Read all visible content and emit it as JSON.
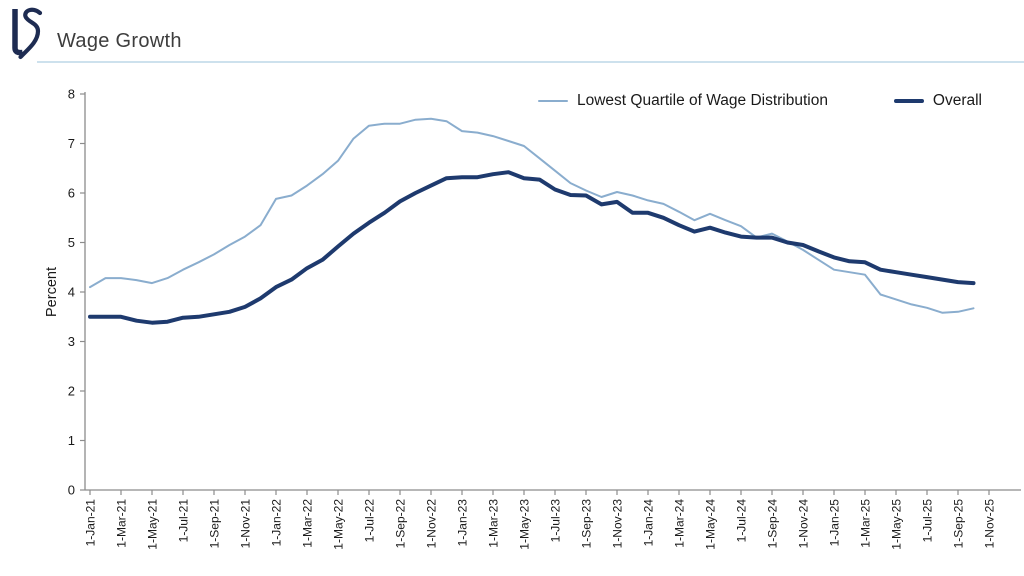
{
  "header": {
    "title": "Wage Growth",
    "logo_text": "LS"
  },
  "colors": {
    "background": "#ffffff",
    "axis": "#8c8c8c",
    "tick_text": "#1a1a1a",
    "title_text": "#3d3d3d",
    "divider": "#cde1ed",
    "logo": "#1e2c52",
    "lowest_quartile_line": "#8aadce",
    "overall_line": "#1e3a6e"
  },
  "chart_data": {
    "type": "line",
    "title": "Wage Growth",
    "xlabel": "",
    "ylabel": "Percent",
    "ylim": [
      0,
      8
    ],
    "ytick_step": 1,
    "grid": false,
    "legend_position": "top-right",
    "x_tick_labels": [
      "1-Jan-21",
      "1-Mar-21",
      "1-May-21",
      "1-Jul-21",
      "1-Sep-21",
      "1-Nov-21",
      "1-Jan-22",
      "1-Mar-22",
      "1-May-22",
      "1-Jul-22",
      "1-Sep-22",
      "1-Nov-22",
      "1-Jan-23",
      "1-Mar-23",
      "1-May-23",
      "1-Jul-23",
      "1-Sep-23",
      "1-Nov-23",
      "1-Jan-24",
      "1-Mar-24",
      "1-May-24",
      "1-Jul-24",
      "1-Sep-24",
      "1-Nov-24",
      "1-Jan-25",
      "1-Mar-25",
      "1-May-25",
      "1-Jul-25",
      "1-Sep-25",
      "1-Nov-25"
    ],
    "x": [
      "Jan-21",
      "Feb-21",
      "Mar-21",
      "Apr-21",
      "May-21",
      "Jun-21",
      "Jul-21",
      "Aug-21",
      "Sep-21",
      "Oct-21",
      "Nov-21",
      "Dec-21",
      "Jan-22",
      "Feb-22",
      "Mar-22",
      "Apr-22",
      "May-22",
      "Jun-22",
      "Jul-22",
      "Aug-22",
      "Sep-22",
      "Oct-22",
      "Nov-22",
      "Dec-22",
      "Jan-23",
      "Feb-23",
      "Mar-23",
      "Apr-23",
      "May-23",
      "Jun-23",
      "Jul-23",
      "Aug-23",
      "Sep-23",
      "Oct-23",
      "Nov-23",
      "Dec-23",
      "Jan-24",
      "Feb-24",
      "Mar-24",
      "Apr-24",
      "May-24",
      "Jun-24",
      "Jul-24",
      "Aug-24",
      "Sep-24",
      "Oct-24",
      "Nov-24",
      "Dec-24",
      "Jan-25",
      "Feb-25",
      "Mar-25",
      "Apr-25",
      "May-25",
      "Jun-25",
      "Jul-25",
      "Aug-25",
      "Sep-25",
      "Oct-25"
    ],
    "series": [
      {
        "name": "Lowest Quartile of Wage Distribution",
        "color": "#8aadce",
        "width": 2,
        "values": [
          4.1,
          4.28,
          4.28,
          4.24,
          4.18,
          4.28,
          4.45,
          4.6,
          4.76,
          4.95,
          5.12,
          5.35,
          5.88,
          5.95,
          6.15,
          6.38,
          6.65,
          7.1,
          7.36,
          7.4,
          7.4,
          7.48,
          7.5,
          7.45,
          7.25,
          7.22,
          7.15,
          7.05,
          6.95,
          6.7,
          6.45,
          6.2,
          6.05,
          5.92,
          6.02,
          5.95,
          5.85,
          5.78,
          5.62,
          5.45,
          5.58,
          5.45,
          5.33,
          5.1,
          5.18,
          5.02,
          4.85,
          4.65,
          4.45,
          4.4,
          4.35,
          3.95,
          3.85,
          3.75,
          3.68,
          3.58,
          3.6,
          3.67
        ]
      },
      {
        "name": "Overall",
        "color": "#1e3a6e",
        "width": 4,
        "values": [
          3.5,
          3.5,
          3.5,
          3.42,
          3.38,
          3.4,
          3.48,
          3.5,
          3.55,
          3.6,
          3.7,
          3.87,
          4.1,
          4.25,
          4.48,
          4.65,
          4.92,
          5.18,
          5.4,
          5.6,
          5.83,
          6.0,
          6.15,
          6.3,
          6.32,
          6.32,
          6.38,
          6.42,
          6.3,
          6.27,
          6.07,
          5.96,
          5.95,
          5.77,
          5.82,
          5.6,
          5.6,
          5.5,
          5.35,
          5.22,
          5.3,
          5.2,
          5.12,
          5.1,
          5.1,
          5.0,
          4.95,
          4.82,
          4.7,
          4.62,
          4.6,
          4.45,
          4.4,
          4.35,
          4.3,
          4.25,
          4.2,
          4.18
        ]
      }
    ]
  }
}
